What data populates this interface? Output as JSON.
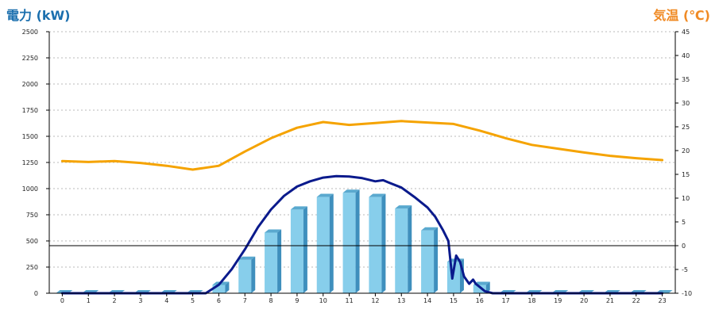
{
  "chart_data": {
    "type": "bar",
    "left_axis_label": "電力 (kW)",
    "right_axis_label": "気温 (℃)",
    "categories": [
      "0",
      "1",
      "2",
      "3",
      "4",
      "5",
      "6",
      "7",
      "8",
      "9",
      "10",
      "11",
      "12",
      "13",
      "14",
      "15",
      "16",
      "17",
      "18",
      "19",
      "20",
      "21",
      "22",
      "23"
    ],
    "ylim_left": [
      0,
      2500
    ],
    "yticks_left": [
      0,
      250,
      500,
      750,
      1000,
      1250,
      1500,
      1750,
      2000,
      2250,
      2500
    ],
    "ylim_right": [
      -10,
      45
    ],
    "yticks_right": [
      -10,
      -5,
      0,
      5,
      10,
      15,
      20,
      25,
      30,
      35,
      40,
      45
    ],
    "reference_line_right": 0,
    "grid": true,
    "series": [
      {
        "kind": "bar",
        "axis": "left",
        "color": "#87ceeb",
        "values": [
          0,
          0,
          0,
          0,
          0,
          0,
          80,
          320,
          580,
          800,
          920,
          960,
          920,
          810,
          600,
          300,
          80,
          0,
          0,
          0,
          0,
          0,
          0,
          0
        ]
      },
      {
        "kind": "line",
        "axis": "left",
        "color": "#0a1a8c",
        "x": [
          0,
          1,
          2,
          3,
          4,
          5,
          5.5,
          6,
          6.5,
          7,
          7.5,
          8,
          8.5,
          9,
          9.5,
          10,
          10.5,
          11,
          11.5,
          12,
          12.3,
          12.5,
          13,
          13.5,
          14,
          14.3,
          14.6,
          14.8,
          14.95,
          15.1,
          15.25,
          15.4,
          15.6,
          15.75,
          15.85,
          16.0,
          16.2,
          16.5,
          17,
          18,
          19,
          20,
          21,
          22,
          23
        ],
        "values": [
          0,
          0,
          0,
          0,
          0,
          0,
          0,
          80,
          230,
          420,
          630,
          800,
          930,
          1020,
          1070,
          1105,
          1120,
          1115,
          1100,
          1070,
          1080,
          1060,
          1010,
          920,
          820,
          730,
          600,
          500,
          140,
          360,
          300,
          160,
          90,
          130,
          90,
          60,
          20,
          0,
          0,
          0,
          0,
          0,
          0,
          0,
          0
        ]
      },
      {
        "kind": "line",
        "axis": "right",
        "color": "#f5a300",
        "x": [
          0,
          1,
          2,
          3,
          4,
          5,
          6,
          7,
          8,
          9,
          10,
          11,
          12,
          13,
          14,
          15,
          16,
          17,
          18,
          19,
          20,
          21,
          22,
          23
        ],
        "values": [
          17.8,
          17.6,
          17.8,
          17.4,
          16.8,
          16.0,
          16.8,
          19.8,
          22.6,
          24.8,
          26.0,
          25.4,
          25.8,
          26.2,
          25.9,
          25.6,
          24.2,
          22.6,
          21.2,
          20.4,
          19.6,
          18.9,
          18.4,
          18.0
        ]
      }
    ]
  }
}
